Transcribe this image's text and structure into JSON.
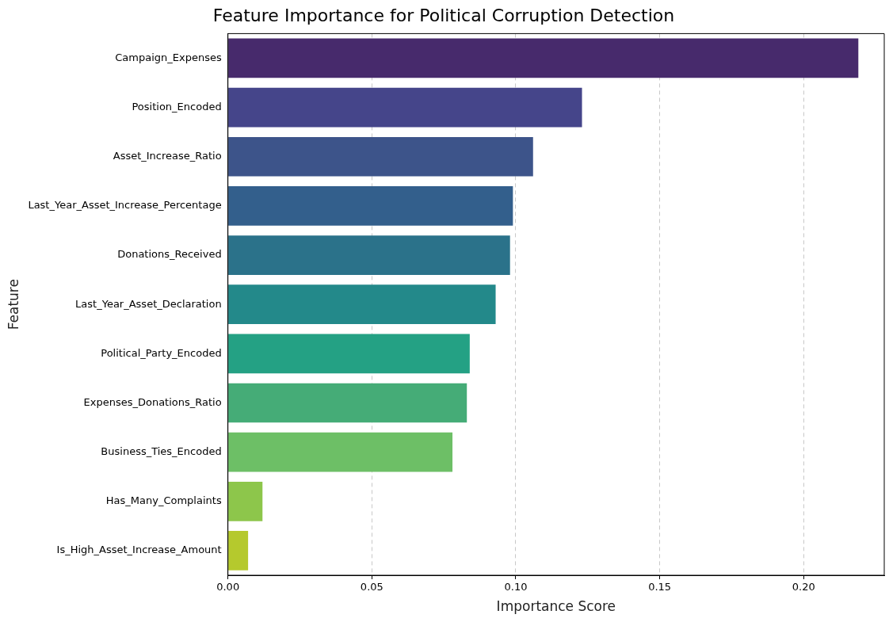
{
  "chart_data": {
    "type": "bar",
    "orientation": "horizontal",
    "title": "Feature Importance for Political Corruption Detection",
    "xlabel": "Importance Score",
    "ylabel": "Feature",
    "categories": [
      "Campaign_Expenses",
      "Position_Encoded",
      "Asset_Increase_Ratio",
      "Last_Year_Asset_Increase_Percentage",
      "Donations_Received",
      "Last_Year_Asset_Declaration",
      "Political_Party_Encoded",
      "Expenses_Donations_Ratio",
      "Business_Ties_Encoded",
      "Has_Many_Complaints",
      "Is_High_Asset_Increase_Amount"
    ],
    "values": [
      0.219,
      0.123,
      0.106,
      0.099,
      0.098,
      0.093,
      0.084,
      0.083,
      0.078,
      0.012,
      0.007
    ],
    "colors": [
      "#472a6c",
      "#45458a",
      "#3d548a",
      "#335f8c",
      "#2b728a",
      "#23898a",
      "#24a184",
      "#45ac77",
      "#6dbf66",
      "#8dc64b",
      "#b5c92d"
    ],
    "xlim": [
      0,
      0.228
    ],
    "xticks": [
      {
        "value": 0,
        "label": "0.00"
      },
      {
        "value": 0.05,
        "label": "0.05"
      },
      {
        "value": 0.1,
        "label": "0.10"
      },
      {
        "value": 0.15,
        "label": "0.15"
      },
      {
        "value": 0.2,
        "label": "0.20"
      }
    ],
    "grid": "x",
    "legend": false
  }
}
